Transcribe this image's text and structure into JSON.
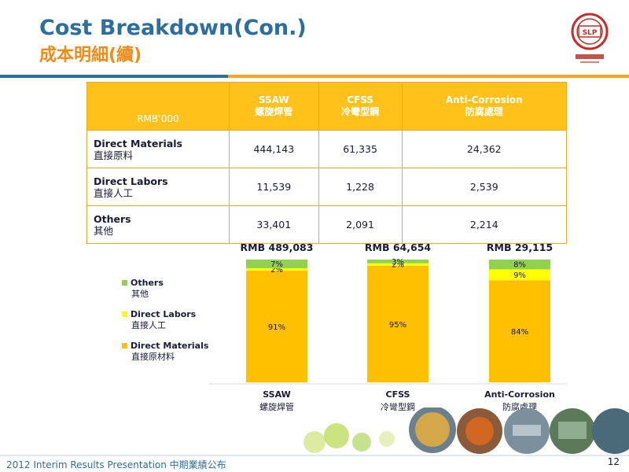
{
  "header": {
    "title_en": "Cost Breakdown(Con.)",
    "title_zh": "成本明細(續)",
    "logo_text": "SLP"
  },
  "table": {
    "corner": "RMB’000",
    "columns": [
      {
        "en": "SSAW",
        "zh": "螺旋焊管"
      },
      {
        "en": "CFSS",
        "zh": "冷彎型鋼"
      },
      {
        "en": "Anti-Corrosion",
        "zh": "防腐處理"
      }
    ],
    "rows": [
      {
        "en": "Direct Materials",
        "zh": "直接原料",
        "values": [
          "444,143",
          "61,335",
          "24,362"
        ]
      },
      {
        "en": "Direct Labors",
        "zh": "直接人工",
        "values": [
          "11,539",
          "1,228",
          "2,539"
        ]
      },
      {
        "en": "Others",
        "zh": "其他",
        "values": [
          "33,401",
          "2,091",
          "2,214"
        ]
      }
    ]
  },
  "chart_data": {
    "type": "bar",
    "stacked": true,
    "normalized": true,
    "categories": [
      "SSAW",
      "CFSS",
      "Anti-Corrosion"
    ],
    "categories_zh": [
      "螺旋焊管",
      "冷彎型鋼",
      "防腐處理"
    ],
    "totals": [
      "RMB 489,083",
      "RMB 64,654",
      "RMB 29,115"
    ],
    "series": [
      {
        "name": "Direct Materials",
        "name_zh": "直接原材料",
        "color": "#ffc000",
        "values": [
          91,
          95,
          84
        ],
        "labels": [
          "91%",
          "95%",
          "84%"
        ]
      },
      {
        "name": "Direct Labors",
        "name_zh": "直接人工",
        "color": "#ffff00",
        "values": [
          2,
          2,
          9
        ],
        "labels": [
          "2%",
          "2%",
          "9%"
        ]
      },
      {
        "name": "Others",
        "name_zh": "其他",
        "color": "#92d050",
        "values": [
          7,
          3,
          8
        ],
        "labels": [
          "7%",
          "3%",
          "8%"
        ]
      }
    ],
    "legend": {
      "position": "left",
      "items": [
        {
          "en": "Others",
          "zh": "其他",
          "color": "#92d050"
        },
        {
          "en": "Direct Labors",
          "zh": "直接人工",
          "color": "#ffff00"
        },
        {
          "en": "Direct Materials",
          "zh": "直接原材料",
          "color": "#ffc000"
        }
      ]
    }
  },
  "footer": {
    "text": "2012 Interim Results Presentation   中期業績公布",
    "page": "12"
  }
}
